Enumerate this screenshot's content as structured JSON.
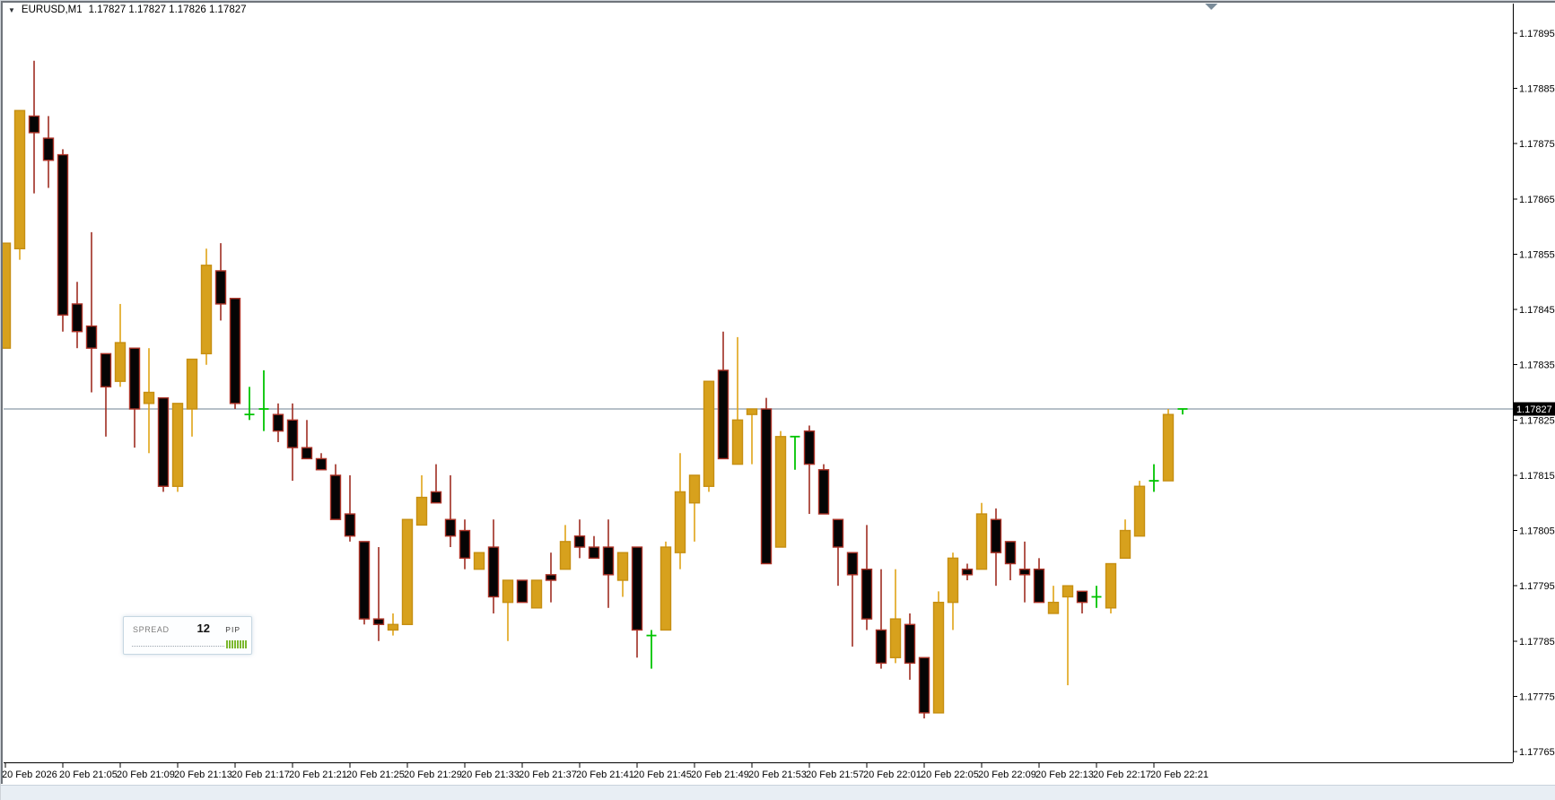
{
  "header": {
    "symbol": "EURUSD,M1",
    "quote": "1.17827 1.17827 1.17826 1.17827"
  },
  "spread_panel": {
    "label": "SPREAD",
    "value": "12",
    "unit": "PIP",
    "bars": 8
  },
  "colors": {
    "bull_body": "#d7a11d",
    "bull_border": "#c68f12",
    "bull_wick": "#dfa417",
    "bear_body": "#050505",
    "bear_border": "#ad3428",
    "bear_wick": "#9e2d22",
    "doji": "#00c400",
    "bid_line": "#8a9aa8",
    "axis_line": "#000000",
    "axis_text": "#000000",
    "price_tag_bg": "#000000",
    "price_tag_text": "#ffffff"
  },
  "price_axis": {
    "labels": [
      "1.17895",
      "1.17885",
      "1.17875",
      "1.17865",
      "1.17855",
      "1.17845",
      "1.17835",
      "1.17825",
      "1.17815",
      "1.17805",
      "1.17795",
      "1.17785",
      "1.17775",
      "1.17765"
    ],
    "current_price": "1.17827"
  },
  "chart_data": {
    "type": "candlestick",
    "symbol": "EURUSD",
    "timeframe": "M1",
    "date": "20 Feb 2026",
    "price_max": 1.17895,
    "price_min": 1.17765,
    "bid": 1.17827,
    "time_ticks": [
      {
        "label": "20 Feb 2026",
        "index": 0
      },
      {
        "label": "20 Feb 21:05",
        "index": 4
      },
      {
        "label": "20 Feb 21:09",
        "index": 8
      },
      {
        "label": "20 Feb 21:13",
        "index": 12
      },
      {
        "label": "20 Feb 21:17",
        "index": 16
      },
      {
        "label": "20 Feb 21:21",
        "index": 20
      },
      {
        "label": "20 Feb 21:25",
        "index": 24
      },
      {
        "label": "20 Feb 21:29",
        "index": 28
      },
      {
        "label": "20 Feb 21:33",
        "index": 32
      },
      {
        "label": "20 Feb 21:37",
        "index": 36
      },
      {
        "label": "20 Feb 21:41",
        "index": 40
      },
      {
        "label": "20 Feb 21:45",
        "index": 44
      },
      {
        "label": "20 Feb 21:49",
        "index": 48
      },
      {
        "label": "20 Feb 21:53",
        "index": 52
      },
      {
        "label": "20 Feb 21:57",
        "index": 56
      },
      {
        "label": "20 Feb 22:01",
        "index": 60
      },
      {
        "label": "20 Feb 22:05",
        "index": 64
      },
      {
        "label": "20 Feb 22:09",
        "index": 68
      },
      {
        "label": "20 Feb 22:13",
        "index": 72
      },
      {
        "label": "20 Feb 22:17",
        "index": 76
      },
      {
        "label": "20 Feb 22:21",
        "index": 80
      }
    ],
    "candles": [
      {
        "t": "21:01",
        "o": 1.17838,
        "h": 1.17857,
        "l": 1.17838,
        "c": 1.17857,
        "d": "bull"
      },
      {
        "t": "21:02",
        "o": 1.17856,
        "h": 1.17881,
        "l": 1.17854,
        "c": 1.17881,
        "d": "bull"
      },
      {
        "t": "21:03",
        "o": 1.1788,
        "h": 1.1789,
        "l": 1.17866,
        "c": 1.17877,
        "d": "bear"
      },
      {
        "t": "21:04",
        "o": 1.17876,
        "h": 1.1788,
        "l": 1.17867,
        "c": 1.17872,
        "d": "bear"
      },
      {
        "t": "21:05",
        "o": 1.17873,
        "h": 1.17874,
        "l": 1.17841,
        "c": 1.17844,
        "d": "bear"
      },
      {
        "t": "21:06",
        "o": 1.17846,
        "h": 1.1785,
        "l": 1.17838,
        "c": 1.17841,
        "d": "bear"
      },
      {
        "t": "21:07",
        "o": 1.17842,
        "h": 1.17859,
        "l": 1.1783,
        "c": 1.17838,
        "d": "bear"
      },
      {
        "t": "21:08",
        "o": 1.17837,
        "h": 1.17837,
        "l": 1.17822,
        "c": 1.17831,
        "d": "bear"
      },
      {
        "t": "21:09",
        "o": 1.17832,
        "h": 1.17846,
        "l": 1.17831,
        "c": 1.17839,
        "d": "bull"
      },
      {
        "t": "21:10",
        "o": 1.17838,
        "h": 1.17838,
        "l": 1.1782,
        "c": 1.17827,
        "d": "bear"
      },
      {
        "t": "21:11",
        "o": 1.17828,
        "h": 1.17838,
        "l": 1.17819,
        "c": 1.1783,
        "d": "bull"
      },
      {
        "t": "21:12",
        "o": 1.17829,
        "h": 1.17829,
        "l": 1.17812,
        "c": 1.17813,
        "d": "bear"
      },
      {
        "t": "21:13",
        "o": 1.17813,
        "h": 1.17828,
        "l": 1.17812,
        "c": 1.17828,
        "d": "bull"
      },
      {
        "t": "21:14",
        "o": 1.17827,
        "h": 1.17836,
        "l": 1.17822,
        "c": 1.17836,
        "d": "bull"
      },
      {
        "t": "21:15",
        "o": 1.17837,
        "h": 1.17856,
        "l": 1.17835,
        "c": 1.17853,
        "d": "bull"
      },
      {
        "t": "21:16",
        "o": 1.17852,
        "h": 1.17857,
        "l": 1.17843,
        "c": 1.17846,
        "d": "bear"
      },
      {
        "t": "21:17",
        "o": 1.17847,
        "h": 1.17847,
        "l": 1.17827,
        "c": 1.17828,
        "d": "bear"
      },
      {
        "t": "21:18",
        "o": 1.17826,
        "h": 1.17831,
        "l": 1.17825,
        "c": 1.17826,
        "d": "doji"
      },
      {
        "t": "21:19",
        "o": 1.17827,
        "h": 1.17834,
        "l": 1.17823,
        "c": 1.17827,
        "d": "doji"
      },
      {
        "t": "21:20",
        "o": 1.17826,
        "h": 1.17828,
        "l": 1.17821,
        "c": 1.17823,
        "d": "bear"
      },
      {
        "t": "21:21",
        "o": 1.17825,
        "h": 1.17828,
        "l": 1.17814,
        "c": 1.1782,
        "d": "bear"
      },
      {
        "t": "21:22",
        "o": 1.1782,
        "h": 1.17825,
        "l": 1.17818,
        "c": 1.17818,
        "d": "bear"
      },
      {
        "t": "21:23",
        "o": 1.17818,
        "h": 1.17819,
        "l": 1.17816,
        "c": 1.17816,
        "d": "bear"
      },
      {
        "t": "21:24",
        "o": 1.17815,
        "h": 1.17817,
        "l": 1.17807,
        "c": 1.17807,
        "d": "bear"
      },
      {
        "t": "21:25",
        "o": 1.17808,
        "h": 1.17815,
        "l": 1.17803,
        "c": 1.17804,
        "d": "bear"
      },
      {
        "t": "21:26",
        "o": 1.17803,
        "h": 1.17803,
        "l": 1.17788,
        "c": 1.17789,
        "d": "bear"
      },
      {
        "t": "21:27",
        "o": 1.17789,
        "h": 1.17802,
        "l": 1.17785,
        "c": 1.17788,
        "d": "bear"
      },
      {
        "t": "21:28",
        "o": 1.17787,
        "h": 1.1779,
        "l": 1.17786,
        "c": 1.17788,
        "d": "bull"
      },
      {
        "t": "21:29",
        "o": 1.17788,
        "h": 1.17807,
        "l": 1.17788,
        "c": 1.17807,
        "d": "bull"
      },
      {
        "t": "21:30",
        "o": 1.17806,
        "h": 1.17815,
        "l": 1.17806,
        "c": 1.17811,
        "d": "bull"
      },
      {
        "t": "21:31",
        "o": 1.17812,
        "h": 1.17817,
        "l": 1.1781,
        "c": 1.1781,
        "d": "bear"
      },
      {
        "t": "21:32",
        "o": 1.17807,
        "h": 1.17815,
        "l": 1.17802,
        "c": 1.17804,
        "d": "bear"
      },
      {
        "t": "21:33",
        "o": 1.17805,
        "h": 1.17807,
        "l": 1.17798,
        "c": 1.178,
        "d": "bear"
      },
      {
        "t": "21:34",
        "o": 1.17798,
        "h": 1.17801,
        "l": 1.17798,
        "c": 1.17801,
        "d": "bull"
      },
      {
        "t": "21:35",
        "o": 1.17802,
        "h": 1.17807,
        "l": 1.1779,
        "c": 1.17793,
        "d": "bear"
      },
      {
        "t": "21:36",
        "o": 1.17792,
        "h": 1.17796,
        "l": 1.17785,
        "c": 1.17796,
        "d": "bull"
      },
      {
        "t": "21:37",
        "o": 1.17796,
        "h": 1.17796,
        "l": 1.17792,
        "c": 1.17792,
        "d": "bear"
      },
      {
        "t": "21:38",
        "o": 1.17791,
        "h": 1.17796,
        "l": 1.17791,
        "c": 1.17796,
        "d": "bull"
      },
      {
        "t": "21:39",
        "o": 1.17797,
        "h": 1.17801,
        "l": 1.17792,
        "c": 1.17796,
        "d": "bear"
      },
      {
        "t": "21:40",
        "o": 1.17798,
        "h": 1.17806,
        "l": 1.17798,
        "c": 1.17803,
        "d": "bull"
      },
      {
        "t": "21:41",
        "o": 1.17804,
        "h": 1.17807,
        "l": 1.178,
        "c": 1.17802,
        "d": "bear"
      },
      {
        "t": "21:42",
        "o": 1.17802,
        "h": 1.17804,
        "l": 1.178,
        "c": 1.178,
        "d": "bear"
      },
      {
        "t": "21:43",
        "o": 1.17802,
        "h": 1.17807,
        "l": 1.17791,
        "c": 1.17797,
        "d": "bear"
      },
      {
        "t": "21:44",
        "o": 1.17796,
        "h": 1.17801,
        "l": 1.17793,
        "c": 1.17801,
        "d": "bull"
      },
      {
        "t": "21:45",
        "o": 1.17802,
        "h": 1.17802,
        "l": 1.17782,
        "c": 1.17787,
        "d": "bear"
      },
      {
        "t": "21:46",
        "o": 1.17786,
        "h": 1.17787,
        "l": 1.1778,
        "c": 1.17786,
        "d": "doji"
      },
      {
        "t": "21:47",
        "o": 1.17787,
        "h": 1.17803,
        "l": 1.17787,
        "c": 1.17802,
        "d": "bull"
      },
      {
        "t": "21:48",
        "o": 1.17801,
        "h": 1.17819,
        "l": 1.17798,
        "c": 1.17812,
        "d": "bull"
      },
      {
        "t": "21:49",
        "o": 1.1781,
        "h": 1.17815,
        "l": 1.17803,
        "c": 1.17815,
        "d": "bull"
      },
      {
        "t": "21:50",
        "o": 1.17813,
        "h": 1.17832,
        "l": 1.17812,
        "c": 1.17832,
        "d": "bull"
      },
      {
        "t": "21:51",
        "o": 1.17834,
        "h": 1.17841,
        "l": 1.17818,
        "c": 1.17818,
        "d": "bear"
      },
      {
        "t": "21:52",
        "o": 1.17817,
        "h": 1.1784,
        "l": 1.17817,
        "c": 1.17825,
        "d": "bull"
      },
      {
        "t": "21:53",
        "o": 1.17826,
        "h": 1.17827,
        "l": 1.17817,
        "c": 1.17827,
        "d": "bull"
      },
      {
        "t": "21:54",
        "o": 1.17827,
        "h": 1.17829,
        "l": 1.17799,
        "c": 1.17799,
        "d": "bear"
      },
      {
        "t": "21:55",
        "o": 1.17802,
        "h": 1.17823,
        "l": 1.17802,
        "c": 1.17822,
        "d": "bull"
      },
      {
        "t": "21:56",
        "o": 1.17822,
        "h": 1.17822,
        "l": 1.17816,
        "c": 1.17822,
        "d": "doji"
      },
      {
        "t": "21:57",
        "o": 1.17823,
        "h": 1.17824,
        "l": 1.17808,
        "c": 1.17817,
        "d": "bear"
      },
      {
        "t": "21:58",
        "o": 1.17816,
        "h": 1.17817,
        "l": 1.17808,
        "c": 1.17808,
        "d": "bear"
      },
      {
        "t": "21:59",
        "o": 1.17807,
        "h": 1.17807,
        "l": 1.17795,
        "c": 1.17802,
        "d": "bear"
      },
      {
        "t": "22:00",
        "o": 1.17801,
        "h": 1.17801,
        "l": 1.17784,
        "c": 1.17797,
        "d": "bear"
      },
      {
        "t": "22:01",
        "o": 1.17798,
        "h": 1.17806,
        "l": 1.17787,
        "c": 1.17789,
        "d": "bear"
      },
      {
        "t": "22:02",
        "o": 1.17787,
        "h": 1.17798,
        "l": 1.1778,
        "c": 1.17781,
        "d": "bear"
      },
      {
        "t": "22:03",
        "o": 1.17782,
        "h": 1.17798,
        "l": 1.17781,
        "c": 1.17789,
        "d": "bull"
      },
      {
        "t": "22:04",
        "o": 1.17788,
        "h": 1.1779,
        "l": 1.17778,
        "c": 1.17781,
        "d": "bear"
      },
      {
        "t": "22:05",
        "o": 1.17782,
        "h": 1.17782,
        "l": 1.17771,
        "c": 1.17772,
        "d": "bear"
      },
      {
        "t": "22:06",
        "o": 1.17772,
        "h": 1.17794,
        "l": 1.17772,
        "c": 1.17792,
        "d": "bull"
      },
      {
        "t": "22:07",
        "o": 1.17792,
        "h": 1.17801,
        "l": 1.17787,
        "c": 1.178,
        "d": "bull"
      },
      {
        "t": "22:08",
        "o": 1.17798,
        "h": 1.17799,
        "l": 1.17796,
        "c": 1.17797,
        "d": "bear"
      },
      {
        "t": "22:09",
        "o": 1.17798,
        "h": 1.1781,
        "l": 1.17798,
        "c": 1.17808,
        "d": "bull"
      },
      {
        "t": "22:10",
        "o": 1.17807,
        "h": 1.17809,
        "l": 1.17795,
        "c": 1.17801,
        "d": "bear"
      },
      {
        "t": "22:11",
        "o": 1.17803,
        "h": 1.17803,
        "l": 1.17796,
        "c": 1.17799,
        "d": "bear"
      },
      {
        "t": "22:12",
        "o": 1.17798,
        "h": 1.17803,
        "l": 1.17792,
        "c": 1.17797,
        "d": "bear"
      },
      {
        "t": "22:13",
        "o": 1.17798,
        "h": 1.178,
        "l": 1.17792,
        "c": 1.17792,
        "d": "bear"
      },
      {
        "t": "22:14",
        "o": 1.1779,
        "h": 1.17795,
        "l": 1.1779,
        "c": 1.17792,
        "d": "bull"
      },
      {
        "t": "22:15",
        "o": 1.17793,
        "h": 1.17795,
        "l": 1.17777,
        "c": 1.17795,
        "d": "bull"
      },
      {
        "t": "22:16",
        "o": 1.17794,
        "h": 1.17794,
        "l": 1.1779,
        "c": 1.17792,
        "d": "bear"
      },
      {
        "t": "22:17",
        "o": 1.17793,
        "h": 1.17795,
        "l": 1.17791,
        "c": 1.17793,
        "d": "doji"
      },
      {
        "t": "22:18",
        "o": 1.17791,
        "h": 1.17799,
        "l": 1.1779,
        "c": 1.17799,
        "d": "bull"
      },
      {
        "t": "22:19",
        "o": 1.178,
        "h": 1.17807,
        "l": 1.178,
        "c": 1.17805,
        "d": "bull"
      },
      {
        "t": "22:20",
        "o": 1.17804,
        "h": 1.17814,
        "l": 1.17804,
        "c": 1.17813,
        "d": "bull"
      },
      {
        "t": "22:21",
        "o": 1.17814,
        "h": 1.17817,
        "l": 1.17812,
        "c": 1.17814,
        "d": "doji"
      },
      {
        "t": "22:22",
        "o": 1.17814,
        "h": 1.17827,
        "l": 1.17814,
        "c": 1.17826,
        "d": "bull"
      },
      {
        "t": "22:23",
        "o": 1.17827,
        "h": 1.17827,
        "l": 1.17826,
        "c": 1.17827,
        "d": "doji"
      }
    ]
  }
}
